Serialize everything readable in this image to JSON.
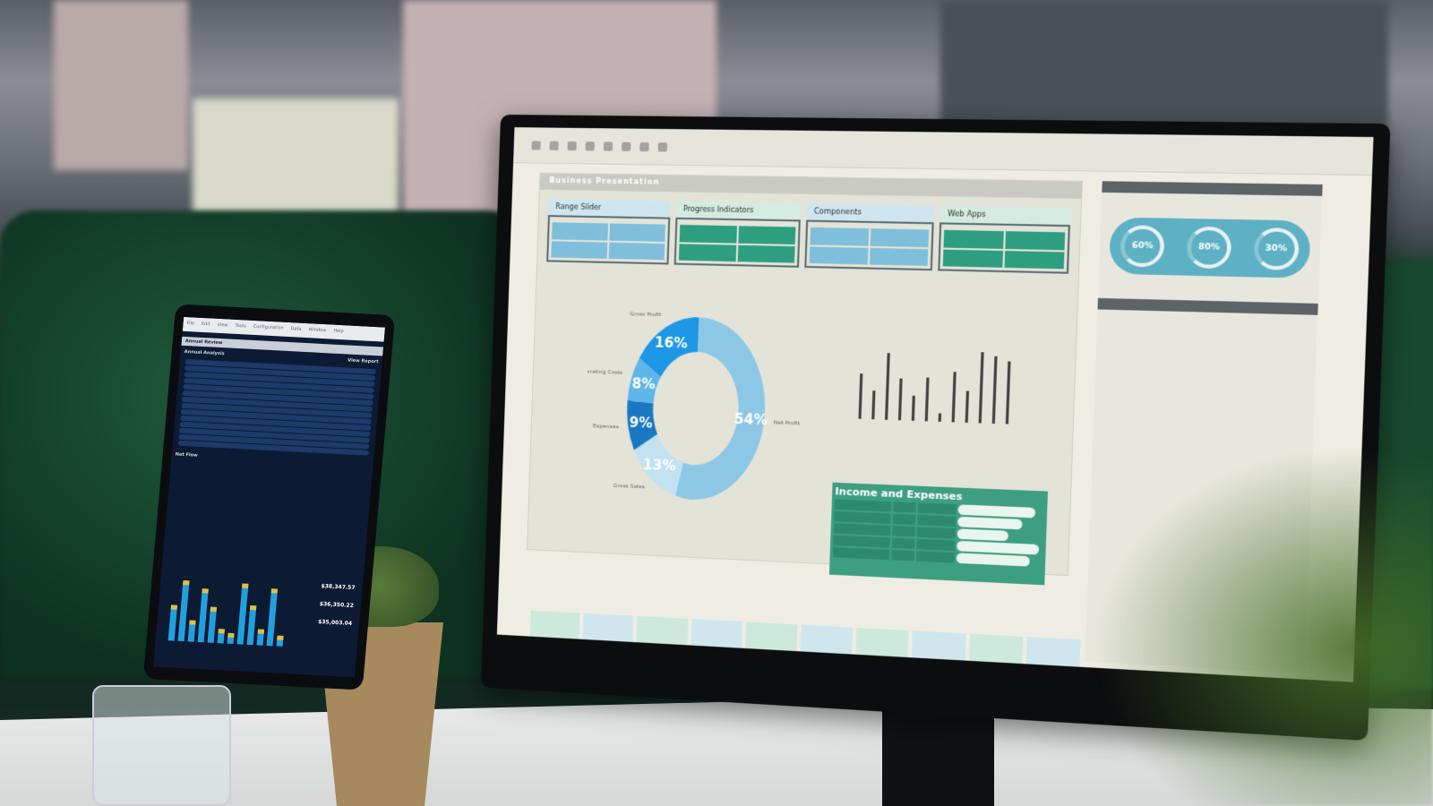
{
  "monitor": {
    "presentation_title": "Business Presentation",
    "cards": [
      {
        "title": "Range Slider"
      },
      {
        "title": "Progress Indicators"
      },
      {
        "title": "Components"
      },
      {
        "title": "Web Apps"
      }
    ],
    "donut": {
      "segments": [
        {
          "label": "Net Profit",
          "value": "54%",
          "fraction": 0.54,
          "color": "#8cc8e6"
        },
        {
          "label": "Gross Sales",
          "value": "13%",
          "fraction": 0.13,
          "color": "#c2e2f2"
        },
        {
          "label": "Expenses",
          "value": "9%",
          "fraction": 0.09,
          "color": "#1a78c2"
        },
        {
          "label": "Operating Costs",
          "value": "8%",
          "fraction": 0.08,
          "color": "#5eb6ea"
        },
        {
          "label": "Gross Profit",
          "value": "16%",
          "fraction": 0.16,
          "color": "#1e96e6"
        }
      ]
    },
    "income_table": {
      "title": "Income and Expenses",
      "rows": 5
    },
    "gauges": [
      "60%",
      "80%",
      "30%"
    ]
  },
  "tablet": {
    "menu": [
      "File",
      "Edit",
      "View",
      "Tools",
      "Configuration",
      "Data",
      "Window",
      "Help"
    ],
    "section_title": "Annual Review",
    "subtitle": "Annual Analysis",
    "view_report": "View Report",
    "chart_title": "Net Flow",
    "values": [
      "$38,347.57",
      "$36,350.22",
      "$35,003.04"
    ]
  }
}
